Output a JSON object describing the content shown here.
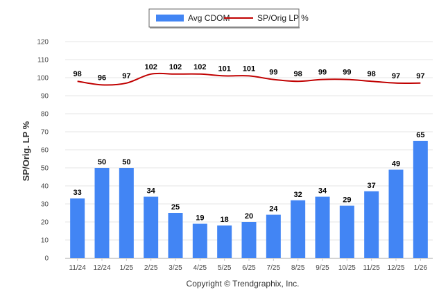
{
  "chart_data": {
    "type": "bar",
    "categories": [
      "11/24",
      "12/24",
      "1/25",
      "2/25",
      "3/25",
      "4/25",
      "5/25",
      "6/25",
      "7/25",
      "8/25",
      "9/25",
      "10/25",
      "11/25",
      "12/25",
      "1/26"
    ],
    "series": [
      {
        "name": "Avg CDOM",
        "type": "bar",
        "color": "#4285f4",
        "values": [
          33,
          50,
          50,
          34,
          25,
          19,
          18,
          20,
          24,
          32,
          34,
          29,
          37,
          49,
          65
        ]
      },
      {
        "name": "SP/Orig LP %",
        "type": "line",
        "color": "#c00000",
        "values": [
          98,
          96,
          97,
          102,
          102,
          102,
          101,
          101,
          99,
          98,
          99,
          99,
          98,
          97,
          97
        ]
      }
    ],
    "ylabel": "SP/Orig. LP %",
    "xlabel": "",
    "ylim": [
      0,
      120
    ],
    "yticks": [
      "0",
      "10",
      "20",
      "30",
      "40",
      "50",
      "60",
      "70",
      "80",
      "90",
      "100",
      "110",
      "120"
    ],
    "grid": true,
    "legend_position": "top-center"
  },
  "copyright": "Copyright © Trendgraphix, Inc."
}
